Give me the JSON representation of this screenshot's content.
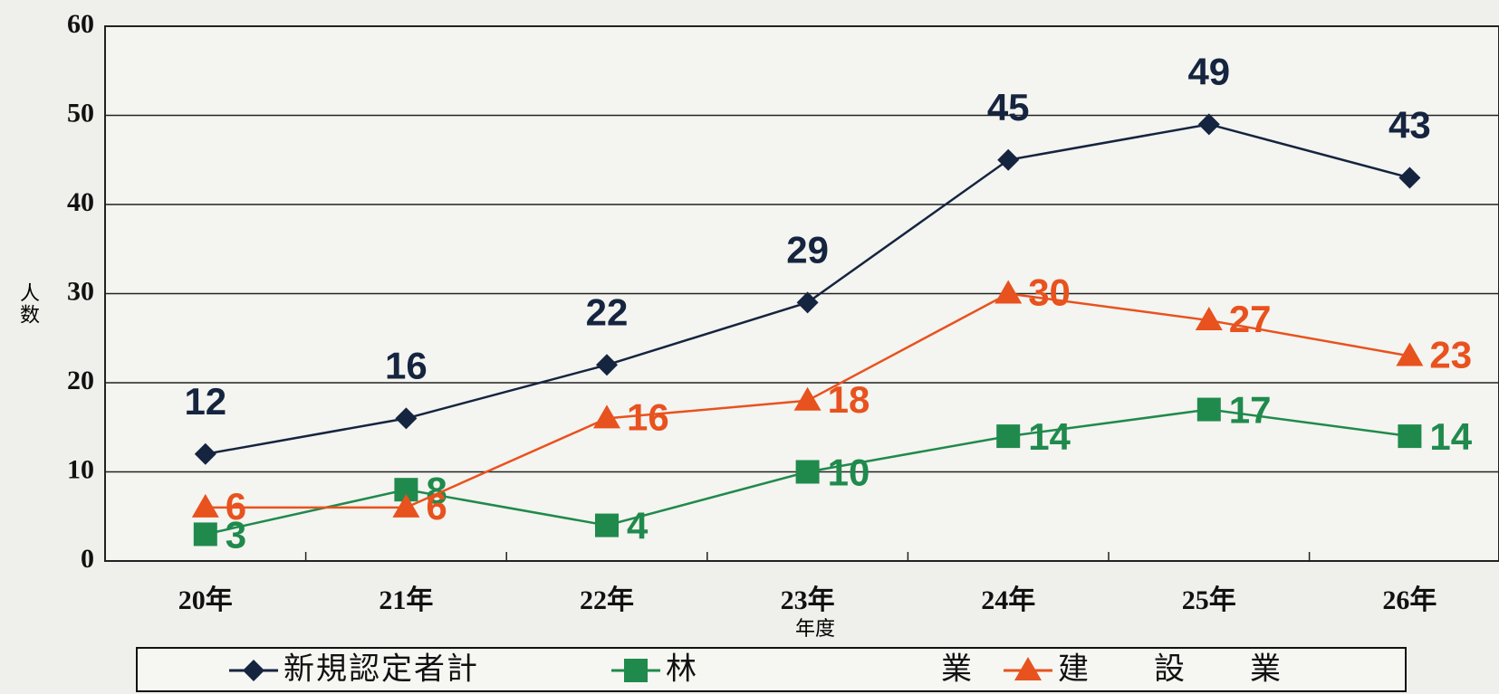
{
  "chart_data": {
    "type": "line",
    "categories": [
      "20年",
      "21年",
      "22年",
      "23年",
      "24年",
      "25年",
      "26年"
    ],
    "series": [
      {
        "name": "新規認定者計",
        "color": "#15243f",
        "marker": "diamond",
        "values": [
          12,
          16,
          22,
          29,
          45,
          49,
          43
        ]
      },
      {
        "name": "林業",
        "color": "#1f8a4c",
        "marker": "square",
        "values": [
          3,
          8,
          4,
          10,
          14,
          17,
          14
        ]
      },
      {
        "name": "建設業",
        "color": "#e8521e",
        "marker": "triangle",
        "values": [
          6,
          6,
          16,
          18,
          30,
          27,
          23
        ]
      }
    ],
    "y_label": "人数",
    "x_label": "年度",
    "ylim": [
      0,
      60
    ],
    "yticks": [
      0,
      10,
      20,
      30,
      40,
      50,
      60
    ],
    "grid": true,
    "legend": "bottom"
  }
}
